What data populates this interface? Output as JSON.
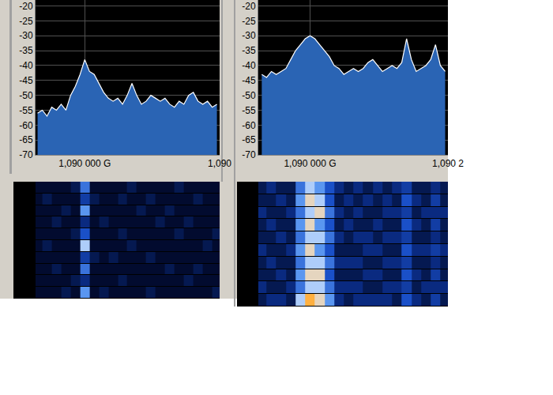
{
  "chart_data": [
    {
      "type": "area",
      "x": [
        1.08993,
        1.089937,
        1.089944,
        1.089951,
        1.089958,
        1.089965,
        1.089972,
        1.089979,
        1.089986,
        1.089993,
        1.09,
        1.090007,
        1.090014,
        1.090021,
        1.090028,
        1.090035,
        1.090042,
        1.090049,
        1.090056,
        1.090063,
        1.09007,
        1.090077,
        1.090084,
        1.090091,
        1.090098,
        1.090105,
        1.090112,
        1.090119,
        1.090126,
        1.090133,
        1.09014,
        1.090147,
        1.090154,
        1.090161,
        1.090168,
        1.090175,
        1.090182,
        1.090189,
        1.090196
      ],
      "values": [
        -56,
        -55,
        -57,
        -54,
        -55,
        -53,
        -55,
        -50,
        -47,
        -43,
        -38,
        -42,
        -43,
        -46,
        -49,
        -51,
        -52,
        -51,
        -53,
        -50,
        -46,
        -50,
        -53,
        -52,
        -50,
        -51,
        -52,
        -51,
        -53,
        -54,
        -52,
        -53,
        -50,
        -49,
        -52,
        -53,
        -52,
        -54,
        -53
      ],
      "color": "#2a64b4",
      "xlim": [
        1.089927,
        1.0902
      ],
      "xticks": [
        {
          "value": 1.09,
          "label": "1,090 000 G"
        },
        {
          "value": 1.0902,
          "label": "1,090"
        }
      ],
      "ylim": [
        -70,
        -18
      ],
      "yticks": [
        -20,
        -25,
        -30,
        -35,
        -40,
        -45,
        -50,
        -55,
        -60,
        -65,
        -70
      ],
      "grid": true
    },
    {
      "type": "area",
      "x": [
        1.08993,
        1.089937,
        1.089944,
        1.089951,
        1.089958,
        1.089965,
        1.089972,
        1.089979,
        1.089986,
        1.089993,
        1.09,
        1.090007,
        1.090014,
        1.090021,
        1.090028,
        1.090035,
        1.090042,
        1.090049,
        1.090056,
        1.090063,
        1.09007,
        1.090077,
        1.090084,
        1.090091,
        1.090098,
        1.090105,
        1.090112,
        1.090119,
        1.090126,
        1.090133,
        1.09014,
        1.090147,
        1.090154,
        1.090161,
        1.090168,
        1.090175,
        1.090182,
        1.090189,
        1.090196
      ],
      "values": [
        -43,
        -44,
        -42,
        -43,
        -42,
        -41,
        -38,
        -35,
        -33,
        -31,
        -30,
        -31,
        -33,
        -35,
        -37,
        -40,
        -41,
        -43,
        -42,
        -41,
        -42,
        -41,
        -39,
        -38,
        -40,
        -42,
        -41,
        -40,
        -41,
        -39,
        -31,
        -38,
        -42,
        -41,
        -40,
        -38,
        -33,
        -40,
        -42
      ],
      "color": "#2a64b4",
      "xlim": [
        1.089925,
        1.0902
      ],
      "xticks": [
        {
          "value": 1.09,
          "label": "1,090 000 G"
        },
        {
          "value": 1.0902,
          "label": "1,090 2"
        }
      ],
      "ylim": [
        -70,
        -18
      ],
      "yticks": [
        -20,
        -25,
        -30,
        -35,
        -40,
        -45,
        -50,
        -55,
        -60,
        -65,
        -70
      ],
      "grid": true
    },
    {
      "type": "heatmap",
      "x": [
        1.08993,
        1.089944,
        1.089958,
        1.089972,
        1.089986,
        1.09,
        1.090014,
        1.090028,
        1.090042,
        1.090056,
        1.09007,
        1.090084,
        1.090098,
        1.090112,
        1.090126,
        1.09014,
        1.090154,
        1.090168,
        1.090182,
        1.090196
      ],
      "xlim": [
        1.089927,
        1.0902
      ],
      "zlim": [
        0,
        10
      ],
      "tick_labels": false,
      "cells": [
        [
          1,
          1,
          1,
          1,
          2,
          6,
          1,
          1,
          1,
          1,
          2,
          1,
          1,
          1,
          1,
          2,
          1,
          1,
          1,
          1
        ],
        [
          1,
          2,
          1,
          1,
          1,
          4,
          2,
          1,
          1,
          2,
          1,
          1,
          2,
          1,
          1,
          1,
          1,
          2,
          1,
          1
        ],
        [
          1,
          1,
          1,
          2,
          1,
          7,
          1,
          1,
          1,
          1,
          1,
          2,
          1,
          1,
          2,
          1,
          1,
          1,
          1,
          1
        ],
        [
          1,
          1,
          2,
          1,
          1,
          3,
          1,
          2,
          1,
          1,
          1,
          1,
          1,
          2,
          1,
          1,
          2,
          1,
          1,
          1
        ],
        [
          1,
          1,
          1,
          1,
          2,
          5,
          1,
          1,
          1,
          2,
          1,
          1,
          1,
          1,
          1,
          2,
          1,
          1,
          1,
          2
        ],
        [
          1,
          2,
          1,
          1,
          1,
          8,
          1,
          1,
          1,
          1,
          2,
          1,
          1,
          1,
          1,
          1,
          1,
          1,
          2,
          1
        ],
        [
          1,
          1,
          1,
          1,
          1,
          4,
          2,
          1,
          2,
          1,
          1,
          1,
          2,
          1,
          1,
          1,
          1,
          1,
          1,
          1
        ],
        [
          1,
          1,
          2,
          1,
          1,
          6,
          1,
          1,
          1,
          1,
          1,
          1,
          1,
          1,
          2,
          1,
          1,
          2,
          1,
          1
        ],
        [
          1,
          1,
          1,
          1,
          2,
          3,
          1,
          1,
          1,
          2,
          1,
          1,
          1,
          1,
          1,
          1,
          2,
          1,
          1,
          1
        ],
        [
          1,
          1,
          1,
          2,
          1,
          7,
          1,
          2,
          1,
          1,
          1,
          1,
          2,
          1,
          1,
          1,
          1,
          1,
          1,
          2
        ]
      ]
    },
    {
      "type": "heatmap",
      "x": [
        1.08993,
        1.089944,
        1.089958,
        1.089972,
        1.089986,
        1.09,
        1.090014,
        1.090028,
        1.090042,
        1.090056,
        1.09007,
        1.090084,
        1.090098,
        1.090112,
        1.090126,
        1.09014,
        1.090154,
        1.090168,
        1.090182,
        1.090196
      ],
      "xlim": [
        1.089925,
        1.0902
      ],
      "zlim": [
        0,
        10
      ],
      "tick_labels": false,
      "cells": [
        [
          2,
          3,
          2,
          2,
          6,
          8,
          7,
          5,
          3,
          2,
          3,
          2,
          3,
          2,
          3,
          4,
          2,
          2,
          3,
          2
        ],
        [
          2,
          2,
          3,
          2,
          7,
          9,
          8,
          5,
          2,
          3,
          2,
          3,
          2,
          3,
          2,
          5,
          3,
          2,
          4,
          2
        ],
        [
          3,
          2,
          2,
          3,
          6,
          8,
          9,
          6,
          3,
          2,
          3,
          2,
          2,
          3,
          3,
          4,
          2,
          3,
          3,
          3
        ],
        [
          2,
          3,
          2,
          2,
          7,
          9,
          7,
          5,
          2,
          3,
          2,
          2,
          3,
          2,
          2,
          5,
          3,
          2,
          4,
          2
        ],
        [
          2,
          2,
          3,
          2,
          6,
          8,
          8,
          6,
          3,
          2,
          3,
          3,
          2,
          3,
          3,
          4,
          2,
          2,
          3,
          2
        ],
        [
          3,
          2,
          2,
          3,
          7,
          9,
          7,
          5,
          2,
          2,
          2,
          3,
          3,
          2,
          2,
          5,
          3,
          3,
          4,
          3
        ],
        [
          2,
          3,
          2,
          2,
          6,
          8,
          8,
          6,
          3,
          3,
          3,
          2,
          2,
          3,
          3,
          4,
          2,
          2,
          3,
          2
        ],
        [
          2,
          2,
          3,
          2,
          7,
          9,
          9,
          5,
          2,
          2,
          2,
          3,
          3,
          2,
          2,
          5,
          3,
          2,
          4,
          2
        ],
        [
          3,
          2,
          2,
          3,
          6,
          8,
          8,
          6,
          3,
          3,
          3,
          2,
          2,
          3,
          3,
          4,
          2,
          3,
          3,
          3
        ],
        [
          2,
          3,
          3,
          2,
          8,
          10,
          9,
          7,
          3,
          2,
          3,
          3,
          3,
          3,
          2,
          5,
          3,
          2,
          4,
          2
        ]
      ]
    }
  ]
}
